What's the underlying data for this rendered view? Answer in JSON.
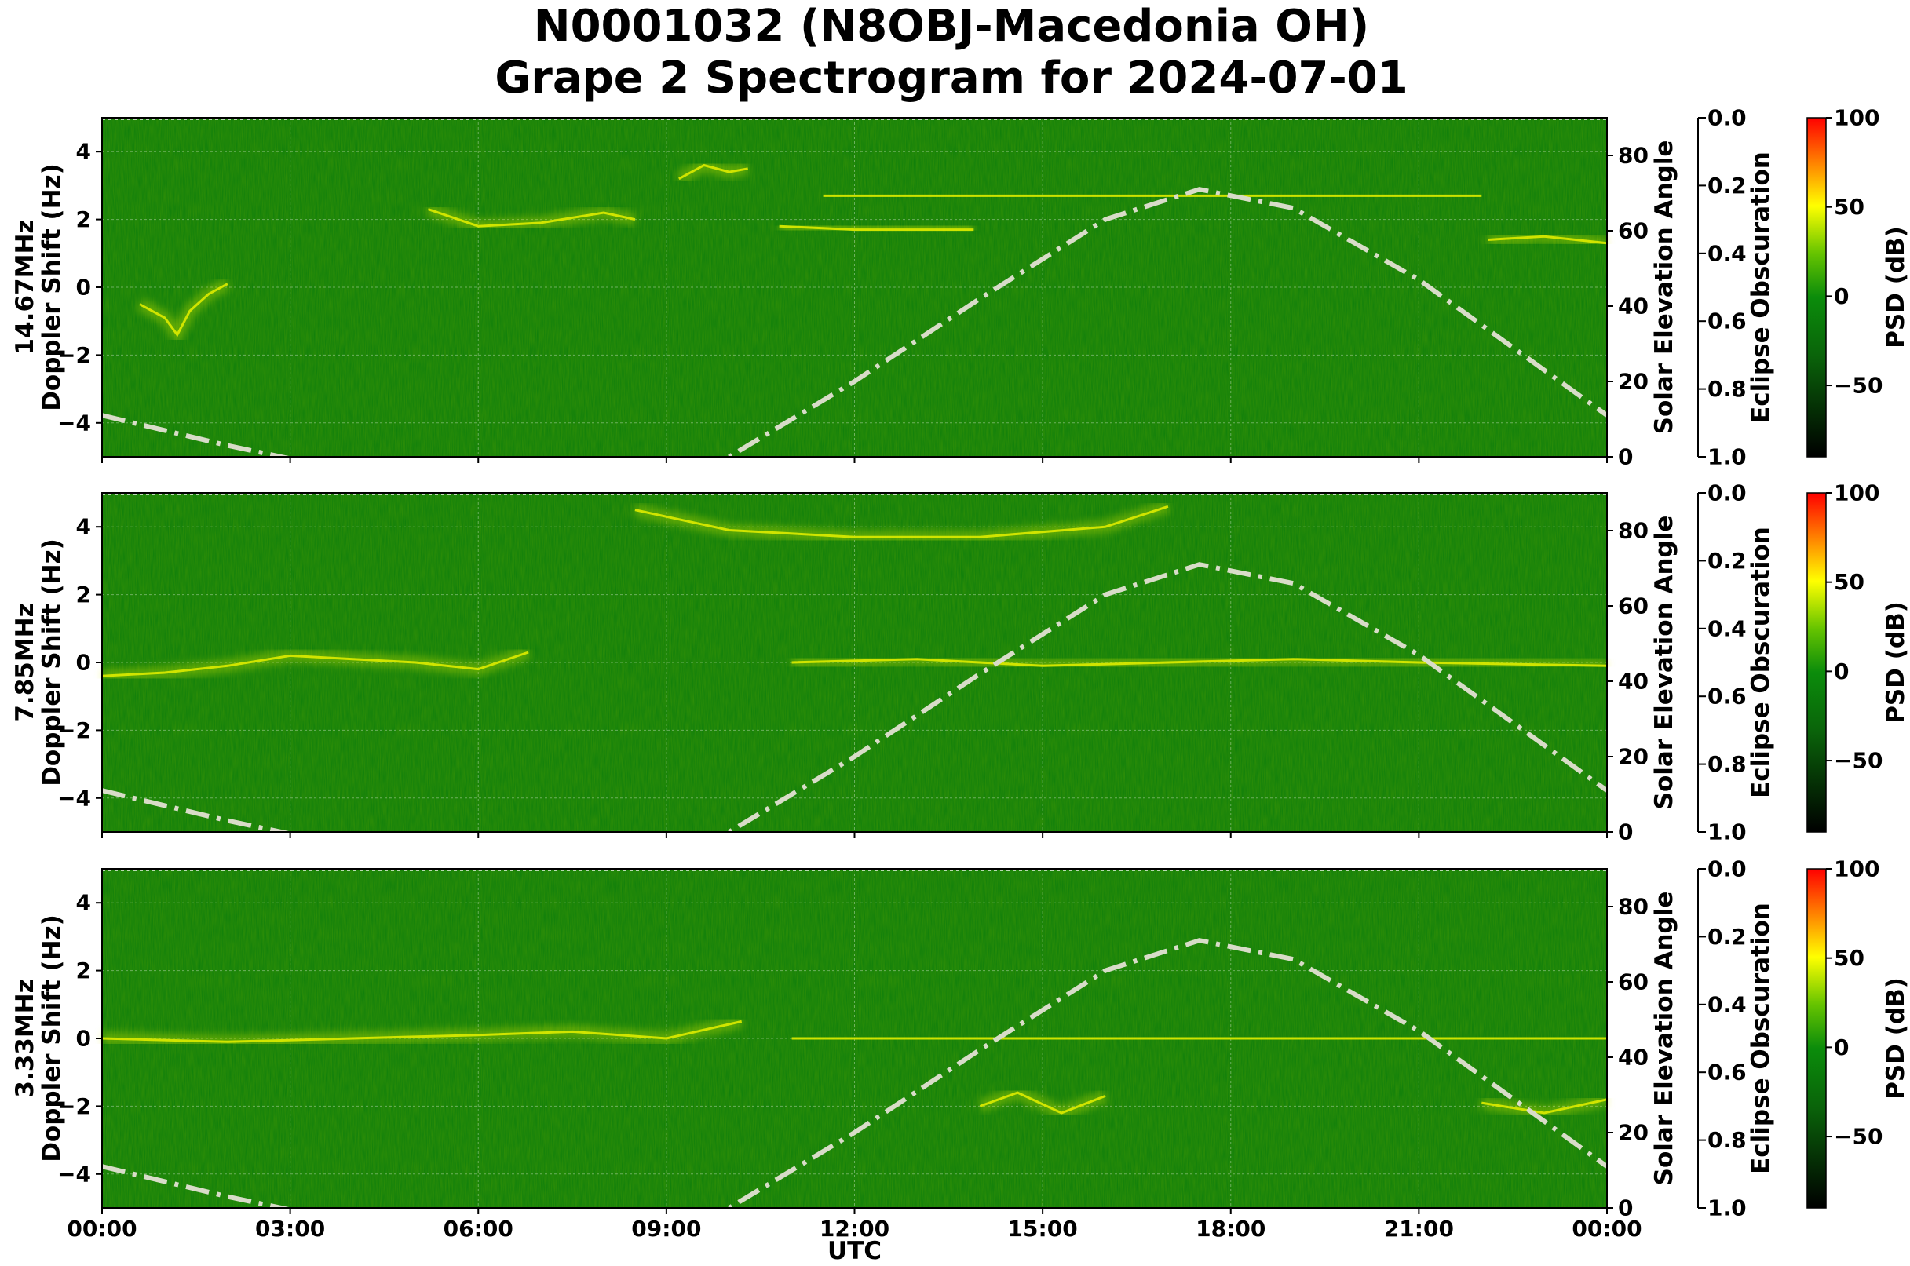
{
  "chart_data": {
    "type": "heatmap",
    "title": [
      "N0001032 (N8OBJ-Macedonia OH)",
      "Grape 2 Spectrogram for 2024-07-01"
    ],
    "xlabel": "UTC",
    "x_ticks": [
      "00:00",
      "03:00",
      "06:00",
      "09:00",
      "12:00",
      "15:00",
      "18:00",
      "21:00",
      "00:00"
    ],
    "x_range_hours": [
      0,
      24
    ],
    "y_ticks": [
      4,
      2,
      0,
      -2,
      -4
    ],
    "ylim": [
      -5,
      5
    ],
    "right_axis_label": "Solar Elevation Angle",
    "right_ticks": [
      80,
      60,
      40,
      20,
      0
    ],
    "right_lim": [
      0,
      90
    ],
    "eclipse_label": "Eclipse Obscuration",
    "eclipse_ticks": [
      "0.0",
      "0.2",
      "0.4",
      "0.6",
      "0.8",
      "1.0"
    ],
    "colorbar_label": "PSD (dB)",
    "colorbar_ticks": [
      100,
      50,
      0,
      -50
    ],
    "colorbar_range": [
      -90,
      100
    ],
    "grid": true,
    "colors": {
      "background": "#0b7d0b",
      "mid": "#d7e800",
      "high": "#ff1a00",
      "solar_line": "#d8dcc8"
    },
    "panels": [
      {
        "ylabel": [
          "14.67MHz",
          "Doppler Shift (Hz)"
        ],
        "solar_elevation": {
          "hours": [
            0,
            2,
            4,
            6,
            8,
            10,
            12,
            14,
            16,
            17.5,
            19,
            21,
            23,
            24
          ],
          "deg": [
            11,
            3,
            -4,
            -8,
            -6,
            0,
            20,
            42,
            63,
            71,
            66,
            47,
            23,
            11
          ]
        },
        "signal_traces": [
          {
            "hours": [
              0.6,
              1.0,
              1.2,
              1.4,
              1.7,
              2.0
            ],
            "hz": [
              -0.5,
              -0.9,
              -1.4,
              -0.7,
              -0.2,
              0.1
            ]
          },
          {
            "hours": [
              5.2,
              6.0,
              7.0,
              8.0,
              8.5
            ],
            "hz": [
              2.3,
              1.8,
              1.9,
              2.2,
              2.0
            ]
          },
          {
            "hours": [
              9.2,
              9.6,
              10.0,
              10.3
            ],
            "hz": [
              3.2,
              3.6,
              3.4,
              3.5
            ]
          },
          {
            "hours": [
              10.8,
              12.0,
              13.9
            ],
            "hz": [
              1.8,
              1.7,
              1.7
            ]
          },
          {
            "hours": [
              11.5,
              14.0,
              17.0,
              20.0,
              22.0
            ],
            "hz": [
              2.7,
              2.7,
              2.7,
              2.7,
              2.7
            ]
          },
          {
            "hours": [
              22.1,
              23.0,
              24.0
            ],
            "hz": [
              1.4,
              1.5,
              1.3
            ]
          }
        ]
      },
      {
        "ylabel": [
          "7.85MHz",
          "Doppler Shift (Hz)"
        ],
        "solar_elevation": {
          "hours": [
            0,
            2,
            4,
            6,
            8,
            10,
            12,
            14,
            16,
            17.5,
            19,
            21,
            23,
            24
          ],
          "deg": [
            11,
            3,
            -4,
            -8,
            -6,
            0,
            20,
            42,
            63,
            71,
            66,
            47,
            23,
            11
          ]
        },
        "signal_traces": [
          {
            "hours": [
              0.0,
              1.0,
              2.0,
              3.0,
              4.0,
              5.0,
              6.0,
              6.8
            ],
            "hz": [
              -0.4,
              -0.3,
              -0.1,
              0.2,
              0.1,
              0.0,
              -0.2,
              0.3
            ]
          },
          {
            "hours": [
              11.0,
              13.0,
              15.0,
              17.0,
              19.0,
              21.0,
              24.0
            ],
            "hz": [
              0.0,
              0.1,
              -0.1,
              0.0,
              0.1,
              0.0,
              -0.1
            ]
          },
          {
            "hours": [
              8.5,
              10.0,
              12.0,
              14.0,
              16.0,
              17.0
            ],
            "hz": [
              4.5,
              3.9,
              3.7,
              3.7,
              4.0,
              4.6
            ]
          }
        ]
      },
      {
        "ylabel": [
          "3.33MHz",
          "Doppler Shift (Hz)"
        ],
        "solar_elevation": {
          "hours": [
            0,
            2,
            4,
            6,
            8,
            10,
            12,
            14,
            16,
            17.5,
            19,
            21,
            23,
            24
          ],
          "deg": [
            11,
            3,
            -4,
            -8,
            -6,
            0,
            20,
            42,
            63,
            71,
            66,
            47,
            23,
            11
          ]
        },
        "signal_traces": [
          {
            "hours": [
              0.0,
              2.0,
              4.0,
              6.0,
              7.5,
              9.0,
              10.2
            ],
            "hz": [
              0.0,
              -0.1,
              0.0,
              0.1,
              0.2,
              0.0,
              0.5
            ]
          },
          {
            "hours": [
              11.0,
              14.0,
              17.0,
              20.0,
              24.0
            ],
            "hz": [
              0.0,
              0.0,
              0.0,
              0.0,
              0.0
            ]
          },
          {
            "hours": [
              14.0,
              14.6,
              15.3,
              16.0
            ],
            "hz": [
              -2.0,
              -1.6,
              -2.2,
              -1.7
            ]
          },
          {
            "hours": [
              22.0,
              23.0,
              24.0
            ],
            "hz": [
              -1.9,
              -2.2,
              -1.8
            ]
          }
        ]
      }
    ]
  }
}
